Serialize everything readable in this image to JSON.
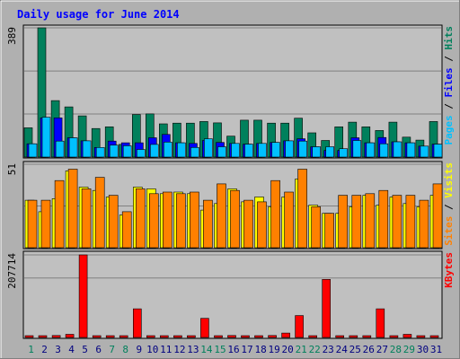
{
  "chart_data": {
    "type": "bar",
    "title": "Daily usage for June 2014",
    "colors": {
      "hits": "#00805c",
      "files": "#0000ff",
      "pages": "#00c0ff",
      "visits": "#ffff00",
      "sites": "#ff8000",
      "kbytes": "#ff0000",
      "title": "#0000ff",
      "weekend_label": "#00805c",
      "weekday_label": "#000080"
    },
    "categories": [
      "1",
      "2",
      "3",
      "4",
      "5",
      "6",
      "7",
      "8",
      "9",
      "10",
      "11",
      "12",
      "13",
      "14",
      "15",
      "16",
      "17",
      "18",
      "19",
      "20",
      "21",
      "22",
      "23",
      "24",
      "25",
      "26",
      "27",
      "28",
      "29",
      "30",
      "31"
    ],
    "weekend_days": [
      "1",
      "7",
      "8",
      "14",
      "15",
      "21",
      "22",
      "28",
      "29"
    ],
    "panels": [
      {
        "name": "hits_files_pages",
        "ymax_label": "389",
        "ylim": [
          0,
          389
        ],
        "legend": [
          {
            "text": "Pages",
            "color": "#00c0ff"
          },
          {
            "text": " / ",
            "color": "#000000"
          },
          {
            "text": "Files",
            "color": "#0000ff"
          },
          {
            "text": " / ",
            "color": "#000000"
          },
          {
            "text": "Hits",
            "color": "#00805c"
          }
        ],
        "series": [
          {
            "name": "Hits",
            "color": "#00805c",
            "values": [
              88,
              389,
              170,
              151,
              124,
              86,
              91,
              38,
              128,
              130,
              100,
              102,
              102,
              107,
              103,
              63,
              111,
              111,
              102,
              102,
              117,
              73,
              50,
              91,
              105,
              91,
              80,
              105,
              60,
              51,
              107
            ]
          },
          {
            "name": "Files",
            "color": "#0000ff",
            "values": [
              40,
              118,
              118,
              58,
              49,
              29,
              48,
              43,
              43,
              58,
              68,
              43,
              41,
              50,
              44,
              41,
              39,
              41,
              44,
              49,
              55,
              31,
              20,
              20,
              58,
              43,
              59,
              46,
              43,
              33,
              39
            ]
          },
          {
            "name": "Pages",
            "color": "#00c0ff",
            "values": [
              40,
              120,
              48,
              58,
              49,
              29,
              36,
              34,
              23,
              38,
              45,
              43,
              29,
              55,
              31,
              41,
              39,
              41,
              44,
              49,
              48,
              31,
              31,
              25,
              50,
              43,
              40,
              46,
              43,
              33,
              39
            ]
          }
        ]
      },
      {
        "name": "visits_sites",
        "ymax_label": "51",
        "ylim": [
          0,
          51
        ],
        "legend": [
          {
            "text": "Sites",
            "color": "#ff8000"
          },
          {
            "text": " / ",
            "color": "#000000"
          },
          {
            "text": "Visits",
            "color": "#ffff00"
          }
        ],
        "series": [
          {
            "name": "Visits",
            "color": "#ffff00",
            "values": [
              29,
              22,
              30,
              47,
              37,
              35,
              31,
              20,
              37,
              36,
              33,
              34,
              33,
              23,
              27,
              36,
              28,
              31,
              25,
              31,
              42,
              26,
              21,
              21,
              25,
              32,
              26,
              31,
              27,
              25,
              32
            ]
          },
          {
            "name": "Sites",
            "color": "#ff8000",
            "values": [
              29,
              29,
              41,
              48,
              36,
              43,
              32,
              22,
              36,
              33,
              34,
              33,
              34,
              29,
              39,
              35,
              29,
              28,
              41,
              34,
              48,
              25,
              21,
              32,
              32,
              33,
              35,
              32,
              32,
              29,
              39
            ]
          }
        ]
      },
      {
        "name": "kbytes",
        "ymax_label": "207714",
        "ylim": [
          0,
          207714
        ],
        "legend": [
          {
            "text": "KBytes",
            "color": "#ff0000"
          }
        ],
        "series": [
          {
            "name": "KBytes",
            "color": "#ff0000",
            "values": [
              2000,
              2000,
              5000,
              8000,
              207714,
              2000,
              2000,
              2000,
              72000,
              2000,
              2000,
              2000,
              2000,
              48000,
              2000,
              5000,
              2000,
              2000,
              5000,
              11000,
              55000,
              2000,
              146000,
              2000,
              2000,
              2000,
              72000,
              2000,
              8000,
              2000,
              2000
            ]
          }
        ]
      }
    ]
  }
}
